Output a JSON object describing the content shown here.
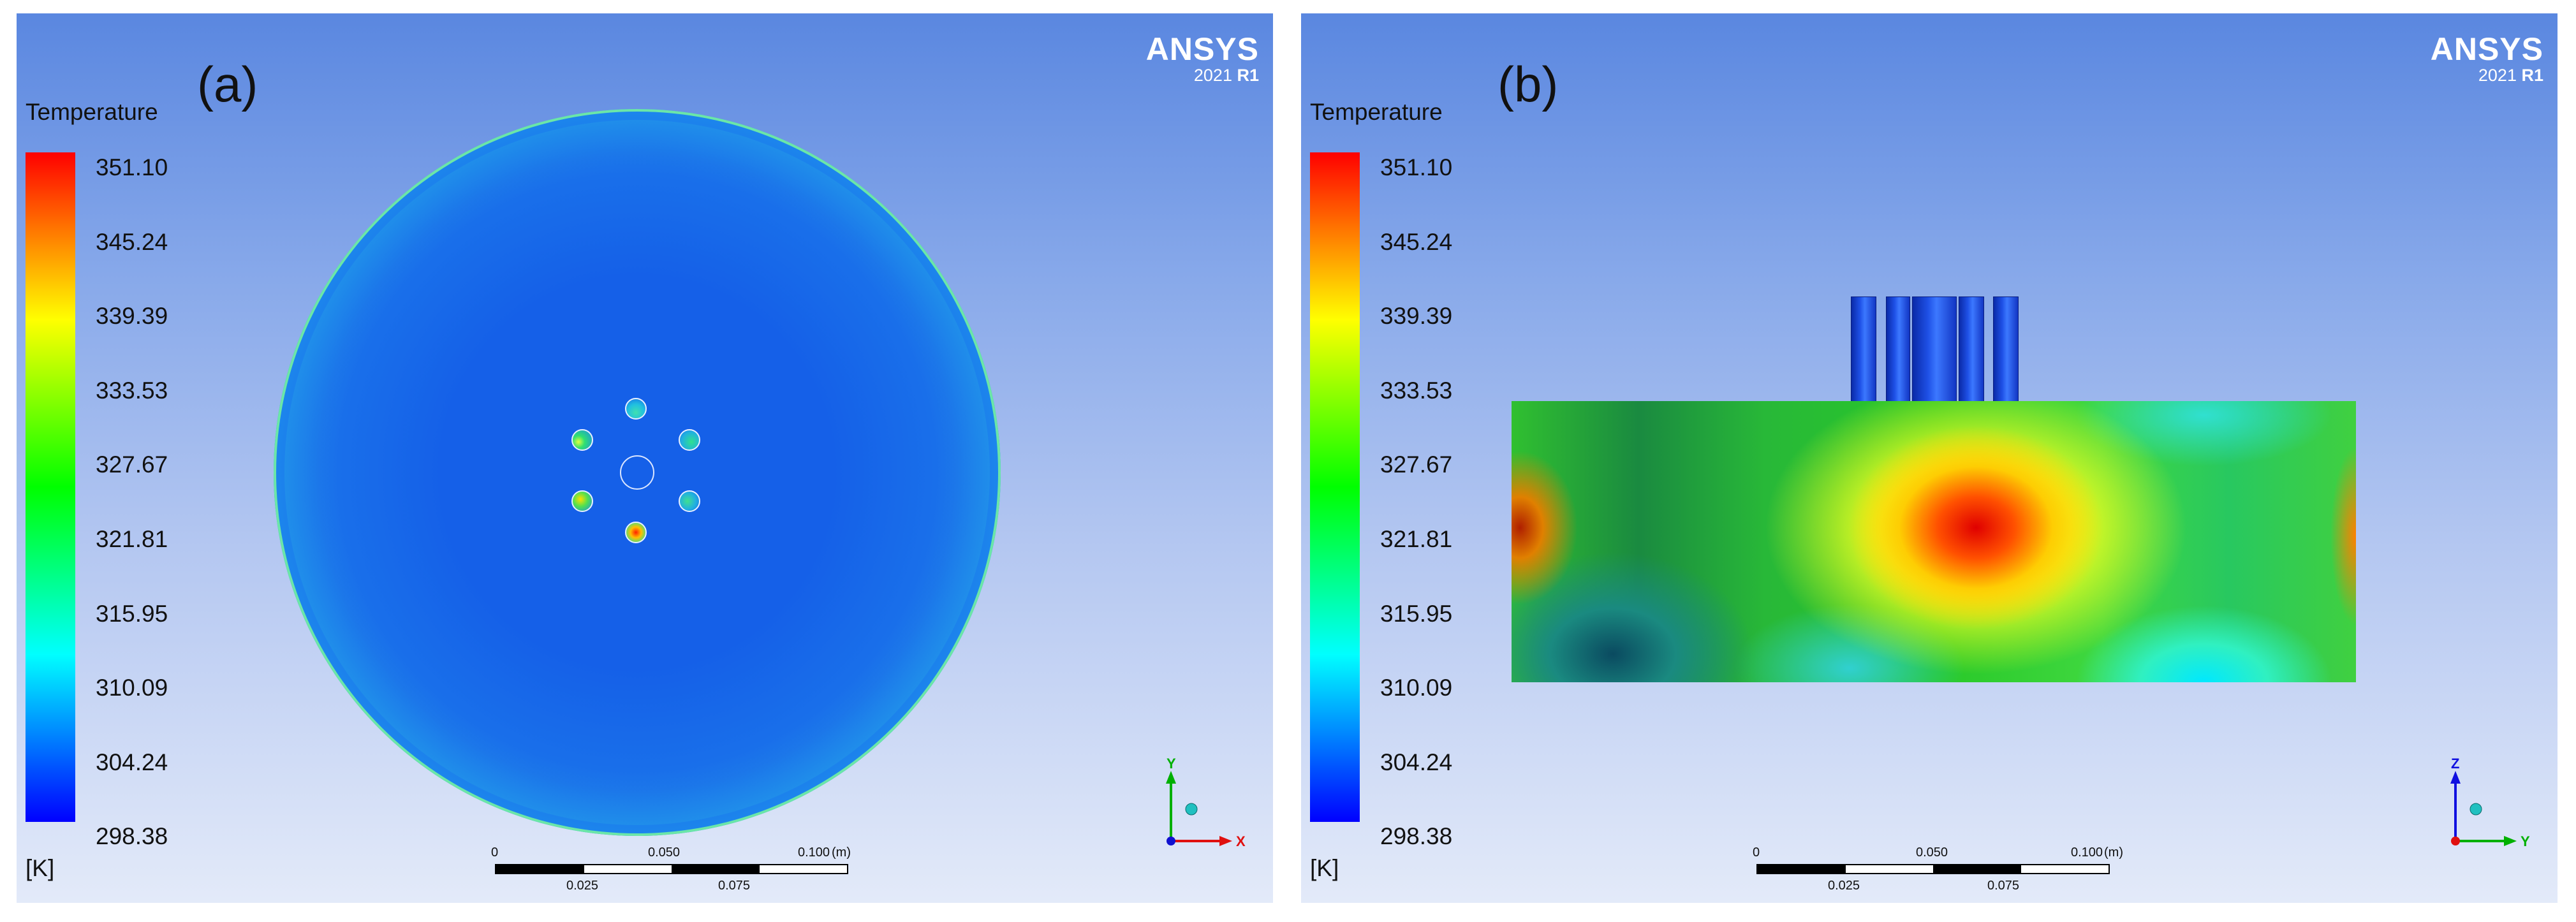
{
  "brand": {
    "name": "ANSYS",
    "version_year": "2021",
    "version_release": "R1"
  },
  "legend": {
    "title": "Temperature",
    "unit": "[K]",
    "ticks": [
      "351.10",
      "345.24",
      "339.39",
      "333.53",
      "327.67",
      "321.81",
      "315.95",
      "310.09",
      "304.24",
      "298.38"
    ]
  },
  "scalebar": {
    "top_labels": [
      "0",
      "0.050",
      "0.100"
    ],
    "unit": "(m)",
    "bottom_labels": [
      "0.025",
      "0.075"
    ]
  },
  "panels": {
    "a": {
      "label": "(a)",
      "axis_labels": [
        "Y",
        "X"
      ],
      "triad_colors": [
        "#00b000",
        "#e01010"
      ]
    },
    "b": {
      "label": "(b)",
      "axis_labels": [
        "Z",
        "Y"
      ],
      "triad_colors": [
        "#1010e0",
        "#00b000"
      ]
    }
  }
}
